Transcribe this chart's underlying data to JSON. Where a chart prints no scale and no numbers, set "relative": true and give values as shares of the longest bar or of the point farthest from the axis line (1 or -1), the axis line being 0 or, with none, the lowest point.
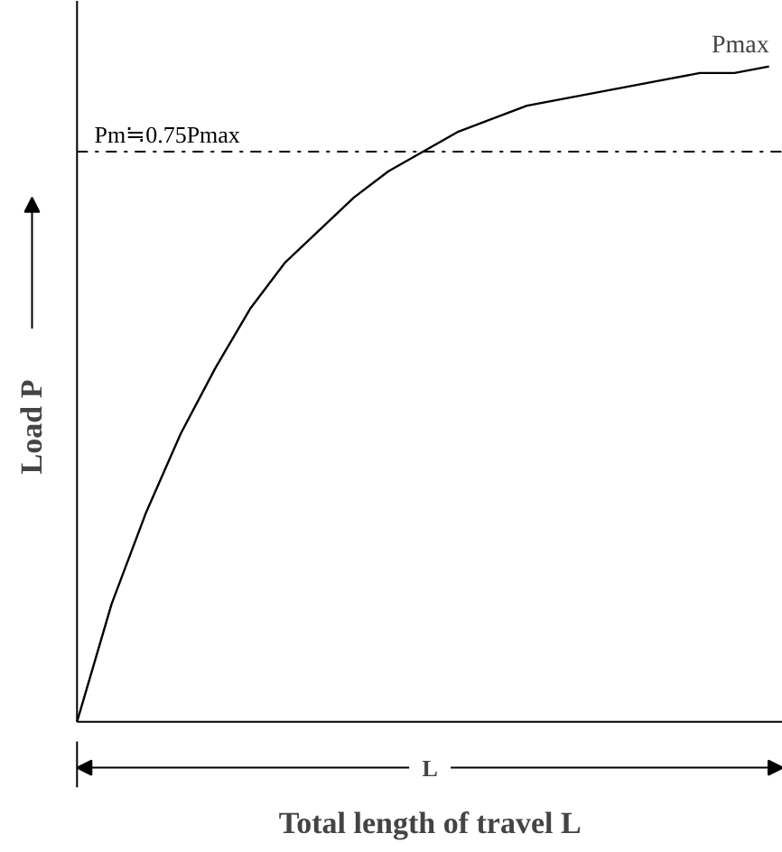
{
  "chart_data": {
    "type": "line",
    "relative": true,
    "xlabel": "Total length of travel L",
    "ylabel": "Load P",
    "categories": [
      null,
      null,
      null,
      null,
      null,
      null,
      null,
      null,
      null,
      null,
      null,
      null,
      null,
      null,
      null,
      null,
      null,
      null,
      null,
      null,
      null
    ],
    "series": [
      {
        "color": "#000000",
        "values": [
          0,
          0.18,
          0.32,
          0.44,
          0.54,
          0.63,
          0.7,
          0.75,
          0.8,
          0.84,
          0.87,
          0.9,
          0.92,
          0.94,
          0.95,
          0.96,
          0.97,
          0.98,
          0.99,
          0.99,
          1.0
        ]
      }
    ],
    "ref_lines": [
      {
        "axis": "y",
        "value": 0.87,
        "label": "Pm≒0.75Pmax",
        "color": "#000000",
        "line_style": "dashdot"
      }
    ],
    "annotations": [
      {
        "text": "Pmax",
        "y": 1.0
      },
      "L"
    ],
    "grid": false,
    "marker": "none",
    "line_style": "solid"
  }
}
